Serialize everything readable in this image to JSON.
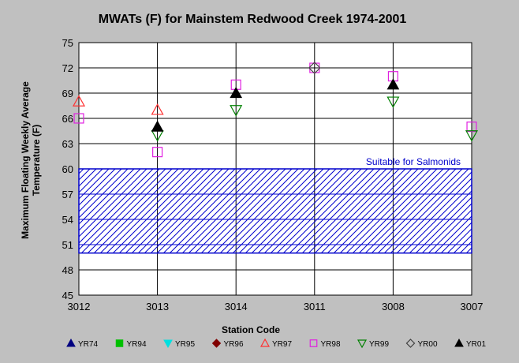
{
  "chart_data": {
    "type": "scatter",
    "title": "MWATs (F) for Mainstem Redwood Creek 1974-2001",
    "xlabel": "Station Code",
    "ylabel": [
      "Maximum Floating Weekly Average",
      "Temperature (F)"
    ],
    "categories": [
      "3012",
      "3013",
      "3014",
      "3011",
      "3008",
      "3007"
    ],
    "ylim": [
      45,
      75
    ],
    "yticks": [
      45,
      48,
      51,
      54,
      57,
      60,
      63,
      66,
      69,
      72,
      75
    ],
    "grid": true,
    "legend_position": "bottom",
    "series": [
      {
        "name": "YR74",
        "marker": "triangle-up-filled",
        "color": "#000080",
        "values": [
          null,
          null,
          null,
          null,
          null,
          null
        ]
      },
      {
        "name": "YR94",
        "marker": "square-filled",
        "color": "#00c000",
        "values": [
          null,
          null,
          null,
          null,
          null,
          null
        ]
      },
      {
        "name": "YR95",
        "marker": "triangle-down-filled",
        "color": "#00e0e0",
        "values": [
          null,
          null,
          null,
          null,
          null,
          null
        ]
      },
      {
        "name": "YR96",
        "marker": "diamond-filled",
        "color": "#800000",
        "values": [
          null,
          null,
          null,
          null,
          null,
          null
        ]
      },
      {
        "name": "YR97",
        "marker": "triangle-up-open",
        "color": "#ff3030",
        "values": [
          68,
          67,
          null,
          null,
          null,
          null
        ]
      },
      {
        "name": "YR98",
        "marker": "square-open",
        "color": "#e020e0",
        "values": [
          66,
          62,
          70,
          72,
          71,
          65
        ]
      },
      {
        "name": "YR99",
        "marker": "triangle-down-open",
        "color": "#008000",
        "values": [
          null,
          64,
          67,
          null,
          68,
          64
        ]
      },
      {
        "name": "YR00",
        "marker": "diamond-open",
        "color": "#404040",
        "values": [
          null,
          null,
          null,
          72,
          null,
          null
        ]
      },
      {
        "name": "YR01",
        "marker": "triangle-up-filled",
        "color": "#000000",
        "values": [
          null,
          65,
          69,
          null,
          70,
          null
        ]
      }
    ],
    "annotation": {
      "text": "Suitable for Salmonids",
      "color": "#0000cc",
      "range": [
        50,
        60
      ]
    }
  }
}
